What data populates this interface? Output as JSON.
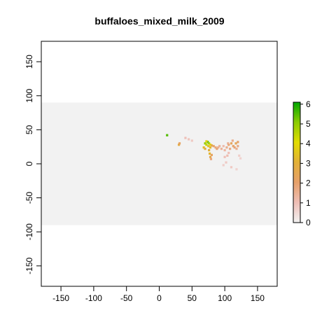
{
  "chart_data": {
    "type": "heatmap",
    "title": "buffaloes_mixed_milk_2009",
    "xlabel": "",
    "ylabel": "",
    "xlim": [
      -180,
      180
    ],
    "ylim": [
      -180,
      180
    ],
    "x_ticks": [
      -150,
      -100,
      -50,
      0,
      50,
      100,
      150
    ],
    "y_ticks": [
      -150,
      -100,
      -50,
      0,
      50,
      100,
      150
    ],
    "x_tick_labels": [
      "-150",
      "-100",
      "-50",
      "0",
      "50",
      "100",
      "150"
    ],
    "y_tick_labels": [
      "-150",
      "-100",
      "-50",
      "0",
      "50",
      "100",
      "150"
    ],
    "raster_extent": {
      "xmin": -180,
      "xmax": 180,
      "ymin": -90,
      "ymax": 90
    },
    "background_color": "#f2f2f2",
    "legend": {
      "placement": "right",
      "min": 0,
      "max": 6.1,
      "ticks": [
        0,
        1,
        2,
        3,
        4,
        5,
        6
      ],
      "tick_labels": [
        "0",
        "1",
        "2",
        "3",
        "4",
        "5",
        "6"
      ],
      "colors": [
        "#f2f2f2",
        "#eebeb6",
        "#e6a06a",
        "#e2b038",
        "#e2dc00",
        "#8ccc00",
        "#00a600"
      ]
    },
    "cells": [
      {
        "x": 70,
        "y": 30,
        "value": 5.0
      },
      {
        "x": 72,
        "y": 28,
        "value": 4.5
      },
      {
        "x": 74,
        "y": 32,
        "value": 5.5
      },
      {
        "x": 76,
        "y": 30,
        "value": 4.8
      },
      {
        "x": 78,
        "y": 28,
        "value": 4.0
      },
      {
        "x": 72,
        "y": 33,
        "value": 3.8
      },
      {
        "x": 75,
        "y": 26,
        "value": 3.5
      },
      {
        "x": 78,
        "y": 24,
        "value": 3.2
      },
      {
        "x": 80,
        "y": 27,
        "value": 2.8
      },
      {
        "x": 76,
        "y": 20,
        "value": 3.0
      },
      {
        "x": 77,
        "y": 15,
        "value": 3.2
      },
      {
        "x": 78,
        "y": 10,
        "value": 2.6
      },
      {
        "x": 80,
        "y": 13,
        "value": 2.2
      },
      {
        "x": 79,
        "y": 7,
        "value": 1.8
      },
      {
        "x": 68,
        "y": 24,
        "value": 3.3
      },
      {
        "x": 70,
        "y": 22,
        "value": 2.9
      },
      {
        "x": 83,
        "y": 26,
        "value": 2.1
      },
      {
        "x": 86,
        "y": 24,
        "value": 1.8
      },
      {
        "x": 90,
        "y": 24,
        "value": 1.5
      },
      {
        "x": 95,
        "y": 22,
        "value": 1.4
      },
      {
        "x": 100,
        "y": 20,
        "value": 1.3
      },
      {
        "x": 103,
        "y": 24,
        "value": 1.6
      },
      {
        "x": 106,
        "y": 28,
        "value": 2.0
      },
      {
        "x": 110,
        "y": 30,
        "value": 2.3
      },
      {
        "x": 113,
        "y": 26,
        "value": 2.1
      },
      {
        "x": 115,
        "y": 24,
        "value": 1.9
      },
      {
        "x": 117,
        "y": 30,
        "value": 2.4
      },
      {
        "x": 120,
        "y": 32,
        "value": 2.1
      },
      {
        "x": 118,
        "y": 22,
        "value": 1.5
      },
      {
        "x": 108,
        "y": 22,
        "value": 1.7
      },
      {
        "x": 112,
        "y": 34,
        "value": 1.6
      },
      {
        "x": 105,
        "y": 30,
        "value": 1.5
      },
      {
        "x": 98,
        "y": 26,
        "value": 1.2
      },
      {
        "x": 120,
        "y": 26,
        "value": 1.7
      },
      {
        "x": 30,
        "y": 28,
        "value": 2.8
      },
      {
        "x": 31,
        "y": 30,
        "value": 2.2
      },
      {
        "x": 12,
        "y": 42,
        "value": 5.5
      },
      {
        "x": 100,
        "y": 10,
        "value": 1.0
      },
      {
        "x": 104,
        "y": 12,
        "value": 1.1
      },
      {
        "x": 106,
        "y": 16,
        "value": 1.0
      },
      {
        "x": 102,
        "y": 2,
        "value": 0.8
      },
      {
        "x": 110,
        "y": -5,
        "value": 0.8
      },
      {
        "x": 118,
        "y": -8,
        "value": 0.6
      },
      {
        "x": 122,
        "y": 12,
        "value": 0.7
      },
      {
        "x": 124,
        "y": 8,
        "value": 0.6
      },
      {
        "x": 98,
        "y": -2,
        "value": 0.7
      },
      {
        "x": 45,
        "y": 36,
        "value": 0.9
      },
      {
        "x": 50,
        "y": 34,
        "value": 0.8
      },
      {
        "x": 40,
        "y": 38,
        "value": 1.0
      },
      {
        "x": 88,
        "y": 22,
        "value": 1.9
      },
      {
        "x": 92,
        "y": 26,
        "value": 1.4
      }
    ]
  }
}
